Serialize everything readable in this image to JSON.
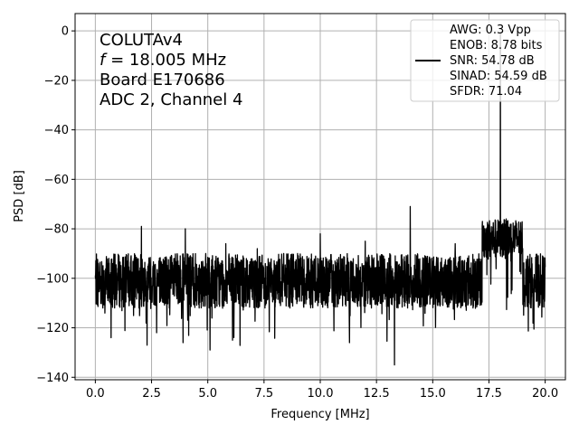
{
  "chart_data": {
    "type": "line",
    "xlabel": "Frequency [MHz]",
    "ylabel": "PSD [dB]",
    "xlim": [
      -0.9,
      20.9
    ],
    "ylim": [
      -141,
      7
    ],
    "x_ticks": [
      0.0,
      2.5,
      5.0,
      7.5,
      10.0,
      12.5,
      15.0,
      17.5,
      20.0
    ],
    "x_tick_labels": [
      "0.0",
      "2.5",
      "5.0",
      "7.5",
      "10.0",
      "12.5",
      "15.0",
      "17.5",
      "20.0"
    ],
    "y_ticks": [
      0,
      -20,
      -40,
      -60,
      -80,
      -100,
      -120,
      -140
    ],
    "y_tick_labels": [
      "0",
      "−20",
      "−40",
      "−60",
      "−80",
      "−100",
      "−120",
      "−140"
    ],
    "grid": true,
    "annotation": {
      "line1": "COLUTAv4",
      "line2_symbol": "f",
      "line2_rest": " = 18.005 MHz",
      "line3": "Board E170686",
      "line4": "ADC 2, Channel 4"
    },
    "legend": {
      "position": "top-right",
      "lines": [
        "AWG: 0.3 Vpp",
        "ENOB: 8.78 bits",
        "SNR: 54.78 dB",
        "SINAD: 54.59 dB",
        "SFDR: 71.04"
      ]
    },
    "series": [
      {
        "color": "#000000",
        "x_range": [
          0.0,
          20.0
        ],
        "noise_floor_db": -101,
        "noise_band_db": [
          -112,
          -90
        ],
        "signal_peak": {
          "x": 18.005,
          "y": -1
        },
        "spurs": [
          {
            "x": 2.05,
            "y": -79
          },
          {
            "x": 4.0,
            "y": -80
          },
          {
            "x": 10.0,
            "y": -82
          },
          {
            "x": 12.0,
            "y": -85
          },
          {
            "x": 14.0,
            "y": -71
          },
          {
            "x": 16.0,
            "y": -86
          },
          {
            "x": 5.8,
            "y": -86
          },
          {
            "x": 7.2,
            "y": -88
          }
        ],
        "bump": {
          "x_from": 17.2,
          "x_to": 19.0,
          "level_db": -84
        },
        "dips": [
          {
            "x": 13.3,
            "y": -135
          },
          {
            "x": 5.1,
            "y": -129
          },
          {
            "x": 2.3,
            "y": -127
          },
          {
            "x": 3.9,
            "y": -126
          },
          {
            "x": 11.3,
            "y": -126
          },
          {
            "x": 6.1,
            "y": -125
          },
          {
            "x": 0.7,
            "y": -124
          }
        ]
      }
    ]
  }
}
